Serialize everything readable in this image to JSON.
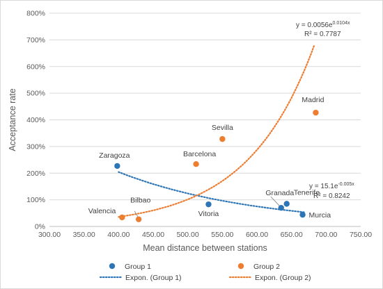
{
  "chart_data": {
    "type": "scatter",
    "title": "",
    "xlabel": "Mean distance between stations",
    "ylabel": "Acceptance rate",
    "xlim": [
      300,
      750
    ],
    "ylim": [
      0,
      8
    ],
    "x_ticks": [
      "300.00",
      "350.00",
      "400.00",
      "450.00",
      "500.00",
      "550.00",
      "600.00",
      "650.00",
      "700.00",
      "750.00"
    ],
    "y_ticks": [
      "0%",
      "100%",
      "200%",
      "300%",
      "400%",
      "500%",
      "600%",
      "700%",
      "800%"
    ],
    "grid": "horizontal",
    "legend_position": "bottom",
    "series": [
      {
        "name": "Group 1",
        "color": "#2e75b6",
        "points": [
          {
            "label": "Zaragoza",
            "x": 398,
            "y": 2.27
          },
          {
            "label": "Vitoria",
            "x": 530,
            "y": 0.83
          },
          {
            "label": "Granada",
            "x": 635,
            "y": 0.7
          },
          {
            "label": "Tenerife",
            "x": 643,
            "y": 0.85
          },
          {
            "label": "Murcia",
            "x": 666,
            "y": 0.44
          }
        ]
      },
      {
        "name": "Group 2",
        "color": "#ed7d31",
        "points": [
          {
            "label": "Valencia",
            "x": 405,
            "y": 0.34
          },
          {
            "label": "Bilbao",
            "x": 429,
            "y": 0.27
          },
          {
            "label": "Barcelona",
            "x": 512,
            "y": 2.34
          },
          {
            "label": "Sevilla",
            "x": 550,
            "y": 3.28
          },
          {
            "label": "Madrid",
            "x": 685,
            "y": 4.27
          }
        ]
      }
    ],
    "trendlines": [
      {
        "name": "Expon. (Group 1)",
        "color": "#2e75b6",
        "a": 15.1,
        "b": -0.005,
        "x_range": [
          400,
          668
        ],
        "equation_base": "y = 15.1e",
        "equation_exp": "-0.005x",
        "r2": "R² = 0.8242"
      },
      {
        "name": "Expon. (Group 2)",
        "color": "#ed7d31",
        "a": 0.0056,
        "b": 0.0104,
        "x_range": [
          400,
          683
        ],
        "equation_base": "y = 0.0056e",
        "equation_exp": "0.0104x",
        "r2": "R² = 0.7787"
      }
    ]
  }
}
